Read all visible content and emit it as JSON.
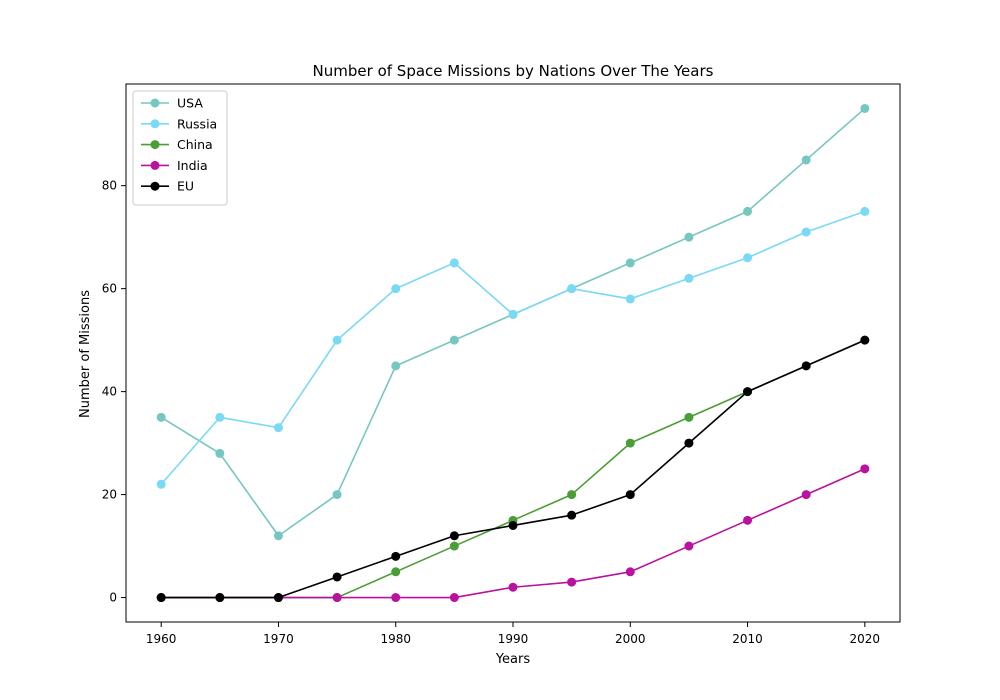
{
  "chart_data": {
    "type": "line",
    "title": "Number of Space Missions by Nations Over The Years",
    "xlabel": "Years",
    "ylabel": "Number of Missions",
    "x": [
      1960,
      1965,
      1970,
      1975,
      1980,
      1985,
      1990,
      1995,
      2000,
      2005,
      2010,
      2015,
      2020
    ],
    "xlim": [
      1957,
      2023
    ],
    "ylim": [
      -4.75,
      99.75
    ],
    "xticks": [
      1960,
      1970,
      1980,
      1990,
      2000,
      2010,
      2020
    ],
    "yticks": [
      0,
      20,
      40,
      60,
      80
    ],
    "grid": false,
    "legend_position": "top-left",
    "series": [
      {
        "name": "USA",
        "color": "#76c7bf",
        "marker": "circle",
        "values": [
          35,
          28,
          12,
          20,
          45,
          50,
          55,
          60,
          65,
          70,
          75,
          85,
          95
        ]
      },
      {
        "name": "Russia",
        "color": "#7ad9f4",
        "marker": "circle",
        "values": [
          22,
          35,
          33,
          50,
          60,
          65,
          55,
          60,
          58,
          62,
          66,
          71,
          75
        ]
      },
      {
        "name": "China",
        "color": "#4a9e35",
        "marker": "circle",
        "values": [
          0,
          0,
          0,
          0,
          5,
          10,
          15,
          20,
          30,
          35,
          40,
          45,
          50
        ]
      },
      {
        "name": "India",
        "color": "#b9129f",
        "marker": "circle",
        "values": [
          0,
          0,
          0,
          0,
          0,
          0,
          2,
          3,
          5,
          10,
          15,
          20,
          25
        ]
      },
      {
        "name": "EU",
        "color": "#000000",
        "marker": "circle",
        "values": [
          0,
          0,
          0,
          4,
          8,
          12,
          14,
          16,
          20,
          30,
          40,
          45,
          50
        ]
      }
    ]
  }
}
